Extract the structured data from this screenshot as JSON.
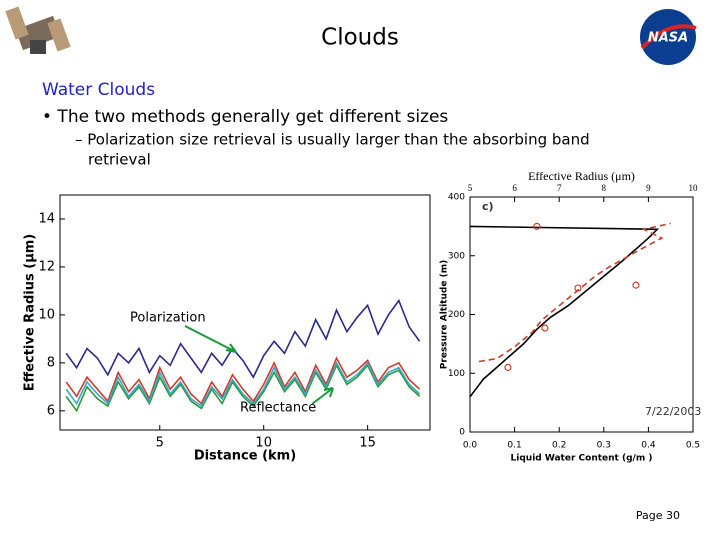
{
  "slide": {
    "title": "Clouds",
    "heading": "Water Clouds",
    "bullet": "• The two methods generally get different sizes",
    "sub_bullet": [
      "– Polarization size retrieval is usually larger than the absorbing band",
      "retrieval"
    ],
    "logo": "NASA",
    "page": "Page 30"
  },
  "chart_data": [
    {
      "type": "line",
      "xlabel": "Distance (km)",
      "ylabel": "Effective Radius (µm)",
      "annotations": [
        "Polarization",
        "Reflectance"
      ],
      "x": [
        0.5,
        1,
        1.5,
        2,
        2.5,
        3,
        3.5,
        4,
        4.5,
        5,
        5.5,
        6,
        6.5,
        7,
        7.5,
        8,
        8.5,
        9,
        9.5,
        10,
        10.5,
        11,
        11.5,
        12,
        12.5,
        13,
        13.5,
        14,
        14.5,
        15,
        15.5,
        16,
        16.5,
        17,
        17.5
      ],
      "series": [
        {
          "color": "#2a2a8a",
          "values": [
            8.4,
            7.8,
            8.6,
            8.2,
            7.5,
            8.4,
            8.0,
            8.6,
            7.6,
            8.3,
            7.9,
            8.8,
            8.2,
            7.6,
            8.4,
            7.9,
            8.6,
            8.1,
            7.4,
            8.3,
            8.9,
            8.4,
            9.3,
            8.7,
            9.8,
            9.0,
            10.2,
            9.3,
            9.9,
            10.4,
            9.2,
            10.0,
            10.6,
            9.5,
            8.9
          ]
        },
        {
          "color": "#d23a2a",
          "values": [
            7.2,
            6.6,
            7.4,
            6.9,
            6.4,
            7.6,
            6.8,
            7.3,
            6.5,
            7.8,
            6.9,
            7.4,
            6.7,
            6.3,
            7.2,
            6.6,
            7.5,
            6.9,
            6.4,
            7.1,
            8.0,
            7.0,
            7.6,
            6.8,
            7.9,
            7.1,
            8.2,
            7.4,
            7.7,
            8.1,
            7.2,
            7.8,
            8.0,
            7.3,
            6.9
          ]
        },
        {
          "color": "#2a9a3a",
          "values": [
            6.6,
            6.0,
            7.0,
            6.5,
            6.2,
            7.2,
            6.5,
            7.0,
            6.3,
            7.4,
            6.6,
            7.1,
            6.4,
            6.1,
            6.9,
            6.3,
            7.2,
            6.6,
            6.2,
            6.8,
            7.6,
            6.8,
            7.3,
            6.6,
            7.6,
            6.9,
            7.9,
            7.1,
            7.4,
            7.9,
            7.0,
            7.5,
            7.7,
            7.0,
            6.6
          ]
        },
        {
          "color": "#3aa8c8",
          "values": [
            6.9,
            6.3,
            7.2,
            6.7,
            6.3,
            7.4,
            6.6,
            7.1,
            6.4,
            7.6,
            6.7,
            7.2,
            6.5,
            6.2,
            7.0,
            6.5,
            7.3,
            6.7,
            6.3,
            6.9,
            7.8,
            6.9,
            7.4,
            6.7,
            7.7,
            7.0,
            8.0,
            7.2,
            7.5,
            8.0,
            7.1,
            7.6,
            7.8,
            7.1,
            6.7
          ]
        }
      ],
      "xlim": [
        0.2,
        18
      ],
      "xticks": [
        5,
        10,
        15
      ],
      "ylim": [
        5.2,
        15
      ],
      "yticks": [
        6,
        8,
        10,
        12,
        14
      ]
    },
    {
      "type": "line",
      "xlabel": "Liquid Water Content (g/m )",
      "x2label": "Effective Radius (μm)",
      "ylabel": "Pressure Altitude (m)",
      "annotations": [
        "c)",
        "7/22/2003"
      ],
      "series": [
        {
          "color": "#000000",
          "x": [
            0.0,
            0.03,
            0.06,
            0.09,
            0.12,
            0.15,
            0.18,
            0.22,
            0.26,
            0.3,
            0.34,
            0.37,
            0.4,
            0.42,
            0.0
          ],
          "values": [
            60,
            90,
            110,
            130,
            150,
            175,
            195,
            215,
            240,
            265,
            290,
            310,
            330,
            345,
            350
          ]
        },
        {
          "color": "#d23a2a",
          "axis": "x2",
          "dash": true,
          "x": [
            5.2,
            5.6,
            6.0,
            6.4,
            6.6,
            7.0,
            7.4,
            7.8,
            8.1,
            8.8,
            9.3,
            8.9,
            9.5
          ],
          "values": [
            120,
            125,
            145,
            170,
            190,
            215,
            240,
            265,
            280,
            310,
            330,
            345,
            355
          ]
        },
        {
          "color": "#d23a2a",
          "axis": "x2",
          "marker": "circle",
          "x": [
            6.5,
            6.68,
            7.42,
            8.72,
            5.85
          ],
          "values": [
            350,
            177,
            245,
            250,
            110
          ]
        }
      ],
      "xlim": [
        0,
        0.5
      ],
      "xticks": [
        {
          "value": 0,
          "label": "0.0"
        },
        0.1,
        0.2,
        0.3,
        0.4,
        0.5
      ],
      "x2lim": [
        5,
        10
      ],
      "x2ticks": [
        5,
        6,
        7,
        8,
        9,
        10
      ],
      "ylim": [
        0,
        400
      ],
      "yticks": [
        0,
        100,
        200,
        300,
        400
      ]
    }
  ]
}
